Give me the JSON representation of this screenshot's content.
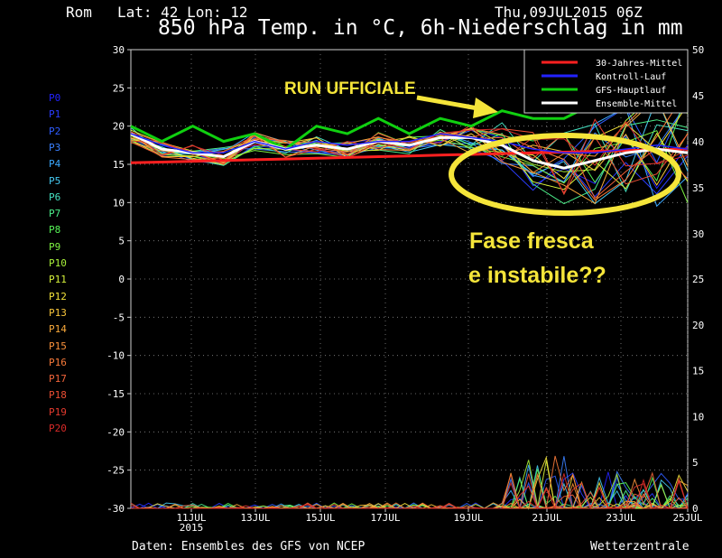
{
  "header": {
    "location": "Rom",
    "coords": "Lat: 42 Lon: 12",
    "datetime": "Thu,09JUL2015 06Z",
    "title": "850 hPa Temp. in °C, 6h-Niederschlag in mm"
  },
  "footer": {
    "source": "Daten: Ensembles des GFS von NCEP",
    "brand": "Wetterzentrale"
  },
  "members": [
    {
      "label": "P0",
      "color": "#2222ff"
    },
    {
      "label": "P1",
      "color": "#2a3cff"
    },
    {
      "label": "P2",
      "color": "#2f5cff"
    },
    {
      "label": "P3",
      "color": "#3a80ff"
    },
    {
      "label": "P4",
      "color": "#3aa8ff"
    },
    {
      "label": "P5",
      "color": "#44c8f0"
    },
    {
      "label": "P6",
      "color": "#44e0c0"
    },
    {
      "label": "P7",
      "color": "#4cee8a"
    },
    {
      "label": "P8",
      "color": "#55f255"
    },
    {
      "label": "P9",
      "color": "#7cf040"
    },
    {
      "label": "P10",
      "color": "#a8f03a"
    },
    {
      "label": "P11",
      "color": "#d6f23a"
    },
    {
      "label": "P12",
      "color": "#f2e23a"
    },
    {
      "label": "P13",
      "color": "#f6c43a"
    },
    {
      "label": "P14",
      "color": "#f8a83a"
    },
    {
      "label": "P15",
      "color": "#f8903a"
    },
    {
      "label": "P16",
      "color": "#f87a3a"
    },
    {
      "label": "P17",
      "color": "#f2643a"
    },
    {
      "label": "P18",
      "color": "#ec4e34"
    },
    {
      "label": "P19",
      "color": "#e43a2e"
    },
    {
      "label": "P20",
      "color": "#d82a28"
    }
  ],
  "annotations": {
    "run_label": "RUN UFFICIALE",
    "phase_line1": "Fase fresca",
    "phase_line2": "e instabile??",
    "color": "#f5e53a"
  },
  "chart_data": {
    "type": "line",
    "x_range": [
      "09JUL2015 06Z",
      "25JUL2015 06Z"
    ],
    "x_step": "6h",
    "x_tick_labels": [
      "11JUL",
      "13JUL",
      "15JUL",
      "17JUL",
      "19JUL",
      "21JUL",
      "23JUL",
      "25JUL"
    ],
    "x_tick_year": "2015",
    "y_left_label": "850 hPa Temp. °C",
    "ylim_left": [
      -30,
      30
    ],
    "y_left_ticks": [
      "30",
      "25",
      "20",
      "15",
      "10",
      "5",
      "0",
      "-5",
      "-10",
      "-15",
      "-20",
      "-25",
      "-30"
    ],
    "y_right_label": "6h-Niederschlag mm",
    "ylim_right": [
      0,
      50
    ],
    "y_right_ticks_top": [
      "50",
      "45",
      "40",
      "35",
      "30"
    ],
    "y_right_ticks_bottom": [
      "30",
      "25",
      "20",
      "15",
      "10",
      "5",
      "0"
    ],
    "grid": true,
    "legend_position": "top-right",
    "legend": [
      {
        "name": "30-Jahres-Mittel",
        "color": "#ff2020"
      },
      {
        "name": "Kontroll-Lauf",
        "color": "#2222ff"
      },
      {
        "name": "GFS-Hauptlauf",
        "color": "#10d010"
      },
      {
        "name": "Ensemble-Mittel",
        "color": "#ffffff"
      }
    ],
    "series": [
      {
        "name": "30-Jahres-Mittel",
        "values": [
          15.2,
          15.3,
          15.4,
          15.5,
          15.6,
          15.7,
          15.8,
          15.9,
          16.0,
          16.1,
          16.2,
          16.3,
          16.4,
          16.5,
          16.6,
          16.7,
          16.8,
          16.9,
          17.0
        ]
      },
      {
        "name": "GFS-Hauptlauf",
        "values": [
          20,
          18,
          20,
          18,
          19,
          17,
          20,
          19,
          21,
          19,
          21,
          20,
          22,
          21,
          21,
          23,
          23,
          25,
          23
        ]
      },
      {
        "name": "Ensemble-Mittel",
        "values": [
          19,
          17,
          16.5,
          16,
          18,
          17,
          17.5,
          17,
          18,
          17.5,
          18.5,
          18.5,
          17.5,
          15.5,
          14.5,
          15.5,
          16.5,
          17,
          16.5
        ]
      },
      {
        "name": "Kontroll-Lauf",
        "values": [
          19,
          17.5,
          16.5,
          16.5,
          18,
          17,
          18,
          17.5,
          18,
          18,
          19,
          18.5,
          18,
          17,
          16.5,
          16.5,
          17,
          17.5,
          17
        ]
      }
    ]
  }
}
